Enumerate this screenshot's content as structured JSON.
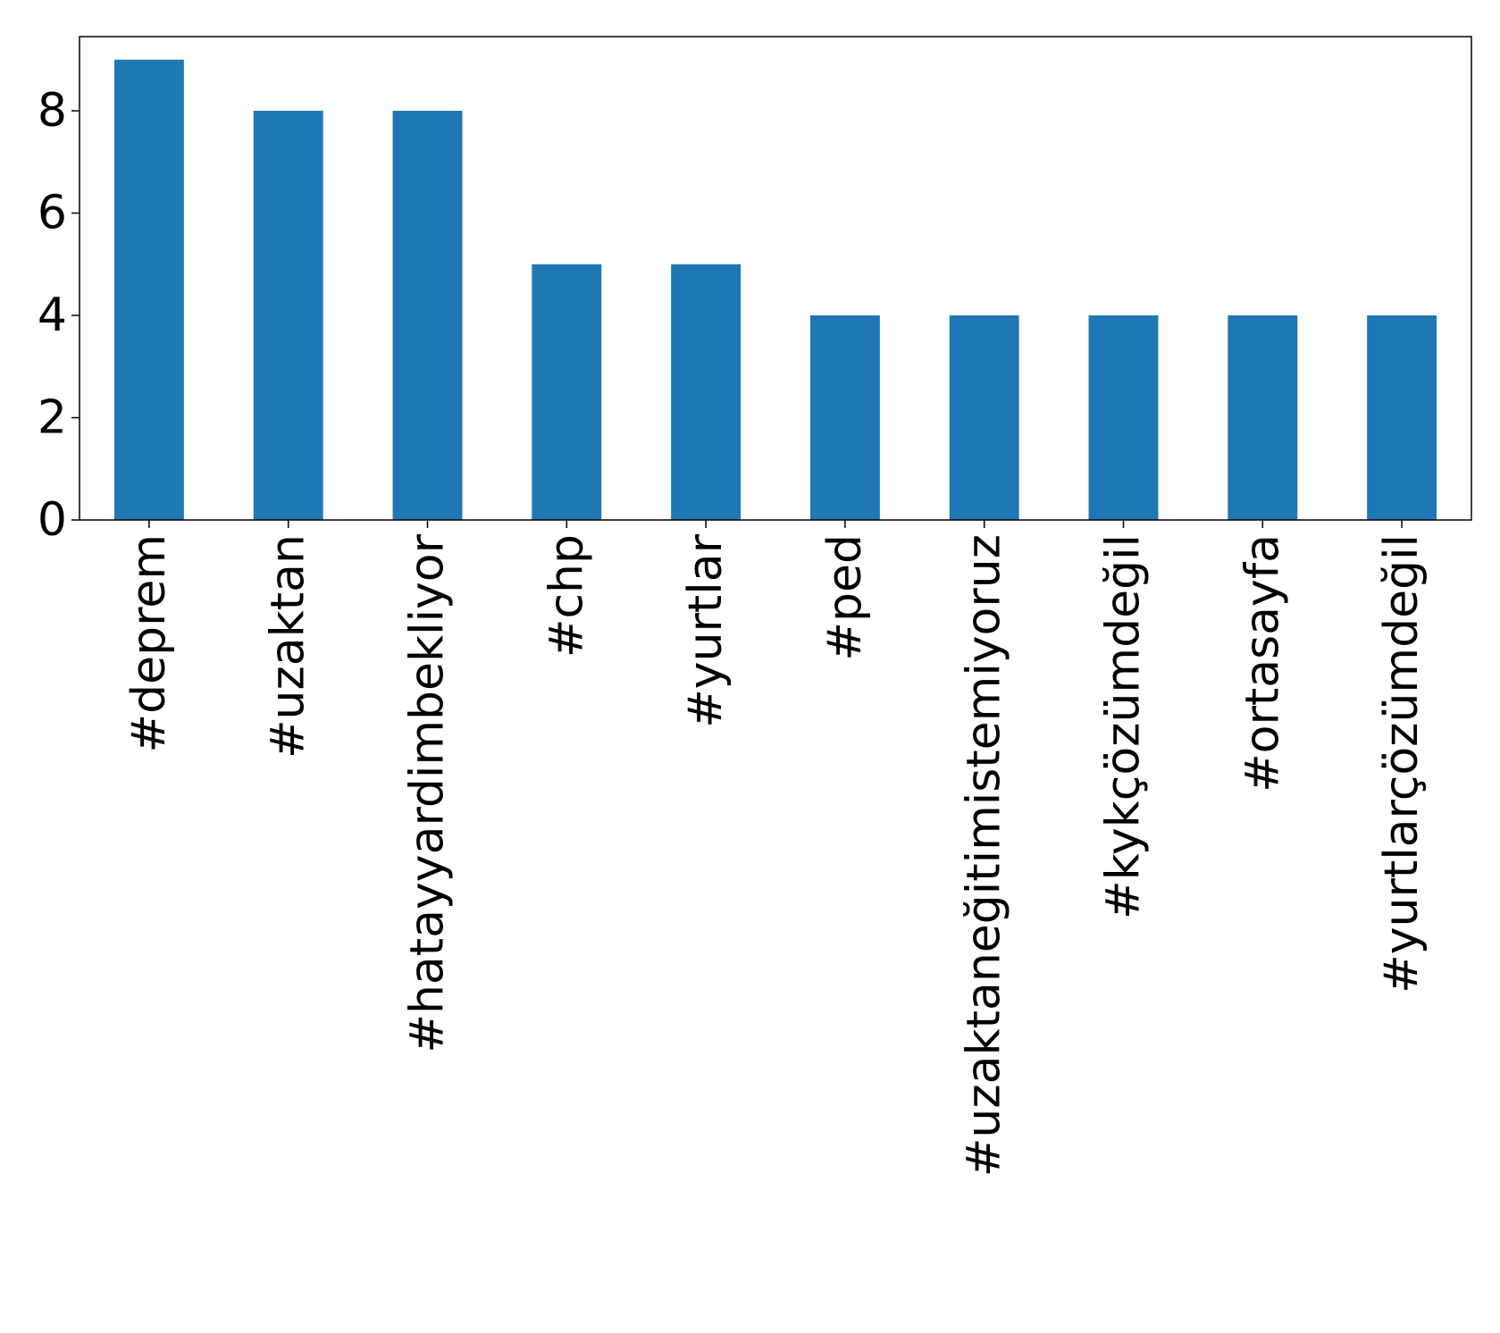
{
  "chart_data": {
    "type": "bar",
    "categories": [
      "#deprem",
      "#uzaktan",
      "#hatayyardimbekliyor",
      "#chp",
      "#yurtlar",
      "#ped",
      "#uzaktaneğitimistemiyoruz",
      "#kykçözümdeğil",
      "#ortasayfa",
      "#yurtlarçözümdeğil"
    ],
    "values": [
      9,
      8,
      8,
      5,
      5,
      4,
      4,
      4,
      4,
      4
    ],
    "color": "#1f77b4",
    "ylim": [
      0,
      9.45
    ],
    "yticks": [
      0,
      2,
      4,
      6,
      8
    ],
    "grid": false
  }
}
